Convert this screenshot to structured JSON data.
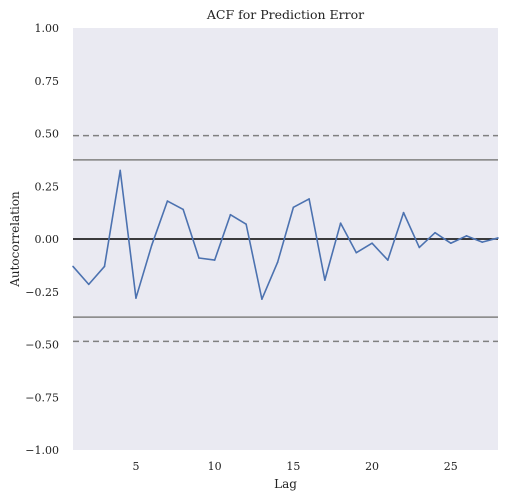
{
  "chart_data": {
    "type": "line",
    "title": "ACF for Prediction Error",
    "xlabel": "Lag",
    "ylabel": "Autocorrelation",
    "xlim": [
      1,
      28
    ],
    "ylim": [
      -1.0,
      1.0
    ],
    "grid": false,
    "x_ticks": [
      5,
      10,
      15,
      20,
      25
    ],
    "y_ticks": [
      "1.00",
      "0.75",
      "0.50",
      "0.25",
      "0.00",
      "−0.25",
      "−0.50",
      "−0.75",
      "−1.00"
    ],
    "y_tick_values": [
      1.0,
      0.75,
      0.5,
      0.25,
      0.0,
      -0.25,
      -0.5,
      -0.75,
      -1.0
    ],
    "series": [
      {
        "x": [
          1,
          2,
          3,
          4,
          5,
          6,
          7,
          8,
          9,
          10,
          11,
          12,
          13,
          14,
          15,
          16,
          17,
          18,
          19,
          20,
          21,
          22,
          23,
          24,
          25,
          26,
          27,
          28
        ],
        "values": [
          -0.13,
          -0.215,
          -0.13,
          0.325,
          -0.28,
          -0.03,
          0.18,
          0.14,
          -0.09,
          -0.1,
          0.115,
          0.07,
          -0.285,
          -0.11,
          0.15,
          0.19,
          -0.195,
          0.075,
          -0.065,
          -0.02,
          -0.1,
          0.125,
          -0.04,
          0.03,
          -0.02,
          0.015,
          -0.015,
          0.005
        ]
      }
    ],
    "reference_lines": {
      "zero": 0.0,
      "solid_bands": [
        0.375,
        -0.37
      ],
      "dashed_bands": [
        0.49,
        -0.485
      ]
    },
    "colors": {
      "background": "#eaeaf2",
      "series": "#4c72b0",
      "zero_line": "#000000",
      "band_line": "#808080"
    }
  }
}
